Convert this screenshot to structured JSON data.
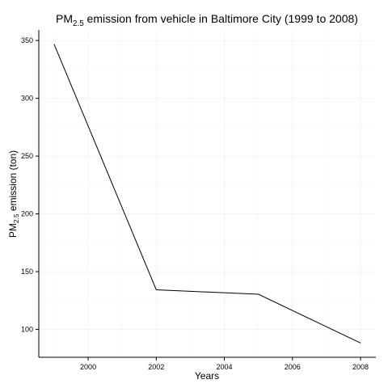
{
  "chart_data": {
    "type": "line",
    "title": {
      "pre": "PM",
      "sub": "2.5",
      "post": " emission from vehicle in Baltimore City (1999 to 2008)"
    },
    "xlabel": "Years",
    "ylabel": {
      "pre": "PM",
      "sub": "2.5",
      "post": " emission (ton)"
    },
    "x": [
      1999,
      2002,
      2005,
      2008
    ],
    "series": [
      {
        "values": [
          346.82,
          134.31,
          130.43,
          88.28
        ]
      }
    ],
    "xlim": [
      1998.55,
      2008.45
    ],
    "ylim": [
      75.9,
      359.2
    ],
    "xticks": [
      2000,
      2002,
      2004,
      2006,
      2008
    ],
    "yticks": [
      100,
      150,
      200,
      250,
      300,
      350
    ],
    "grid": true,
    "colors": {
      "line": "#000000",
      "grid": "#ebebeb"
    }
  }
}
